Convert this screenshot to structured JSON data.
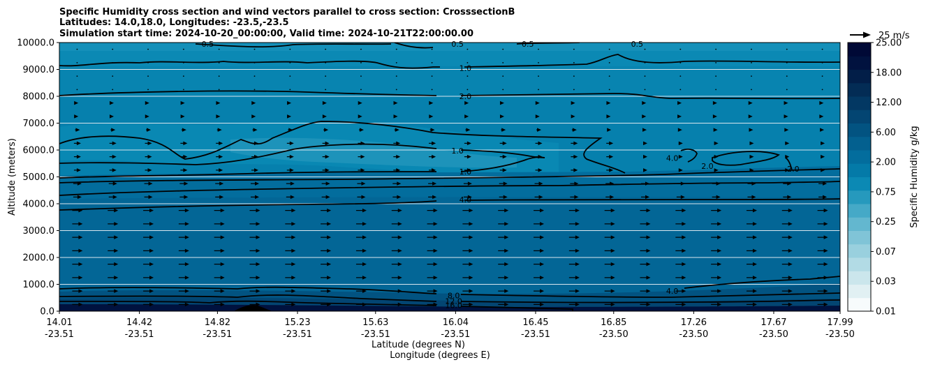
{
  "chart_data": {
    "type": "contour",
    "title_lines": [
      "Specific Humidity cross section and wind vectors parallel to cross section: CrosssectionB",
      "Latitudes: 14.0,18.0, Longitudes: -23.5,-23.5",
      "Simulation start time: 2024-10-20_00:00:00, Valid time: 2024-10-21T22:00:00.00"
    ],
    "ylabel": "Altitude (meters)",
    "xlabel_lat": "Latitude (degrees N)",
    "xlabel_lon": "Longitude (degrees E)",
    "ylim": [
      0,
      10000
    ],
    "yticks": [
      "0.0",
      "1000.0",
      "2000.0",
      "3000.0",
      "4000.0",
      "5000.0",
      "6000.0",
      "7000.0",
      "8000.0",
      "9000.0",
      "10000.0"
    ],
    "x_frac": [
      0,
      0.1025,
      0.2025,
      0.305,
      0.405,
      0.5075,
      0.61,
      0.71,
      0.8125,
      0.915,
      1.0
    ],
    "xticks_lat": [
      "14.01",
      "14.42",
      "14.82",
      "15.23",
      "15.63",
      "16.04",
      "16.45",
      "16.85",
      "17.26",
      "17.67",
      "17.99"
    ],
    "xticks_lon": [
      "-23.51",
      "-23.51",
      "-23.51",
      "-23.51",
      "-23.51",
      "-23.51",
      "-23.51",
      "-23.50",
      "-23.50",
      "-23.50",
      "-23.50"
    ],
    "colorbar": {
      "label": "Specific Humidity g/kg",
      "ticks": [
        "0.01",
        "0.03",
        "0.07",
        "0.25",
        "0.75",
        "2.00",
        "6.00",
        "12.00",
        "18.00",
        "25.00"
      ],
      "colors": [
        "#f7fbfc",
        "#e1f0f3",
        "#cbe6ec",
        "#b2dbe5",
        "#99d0de",
        "#80c4d7",
        "#63b7cf",
        "#45a9c7",
        "#2699bd",
        "#0b89b4",
        "#047aa8",
        "#036d9d",
        "#03608f",
        "#025381",
        "#034572",
        "#033863",
        "#032c55",
        "#021e48",
        "#01123f",
        "#000936"
      ]
    },
    "quiver_key": {
      "label": "25 m/s",
      "speed": 25
    },
    "contour_labels": [
      {
        "text": "0.5",
        "x": 0.19,
        "alt": 9950
      },
      {
        "text": "0.5",
        "x": 0.51,
        "alt": 9950
      },
      {
        "text": "0.5",
        "x": 0.6,
        "alt": 9950
      },
      {
        "text": "0.5",
        "x": 0.74,
        "alt": 9950
      },
      {
        "text": "1.0",
        "x": 0.52,
        "alt": 9050
      },
      {
        "text": "2.0",
        "x": 0.52,
        "alt": 8000
      },
      {
        "text": "1.0",
        "x": 0.51,
        "alt": 5980
      },
      {
        "text": "1.0",
        "x": 0.52,
        "alt": 5200
      },
      {
        "text": "4.0",
        "x": 0.52,
        "alt": 4150
      },
      {
        "text": "4.0",
        "x": 0.785,
        "alt": 5700
      },
      {
        "text": "2.0",
        "x": 0.83,
        "alt": 5400
      },
      {
        "text": "2.0",
        "x": 0.94,
        "alt": 5300
      },
      {
        "text": "4.0",
        "x": 0.785,
        "alt": 750
      },
      {
        "text": "8.0",
        "x": 0.505,
        "alt": 580
      },
      {
        "text": "12.0",
        "x": 0.505,
        "alt": 380
      },
      {
        "text": "16.0",
        "x": 0.505,
        "alt": 220
      }
    ]
  }
}
